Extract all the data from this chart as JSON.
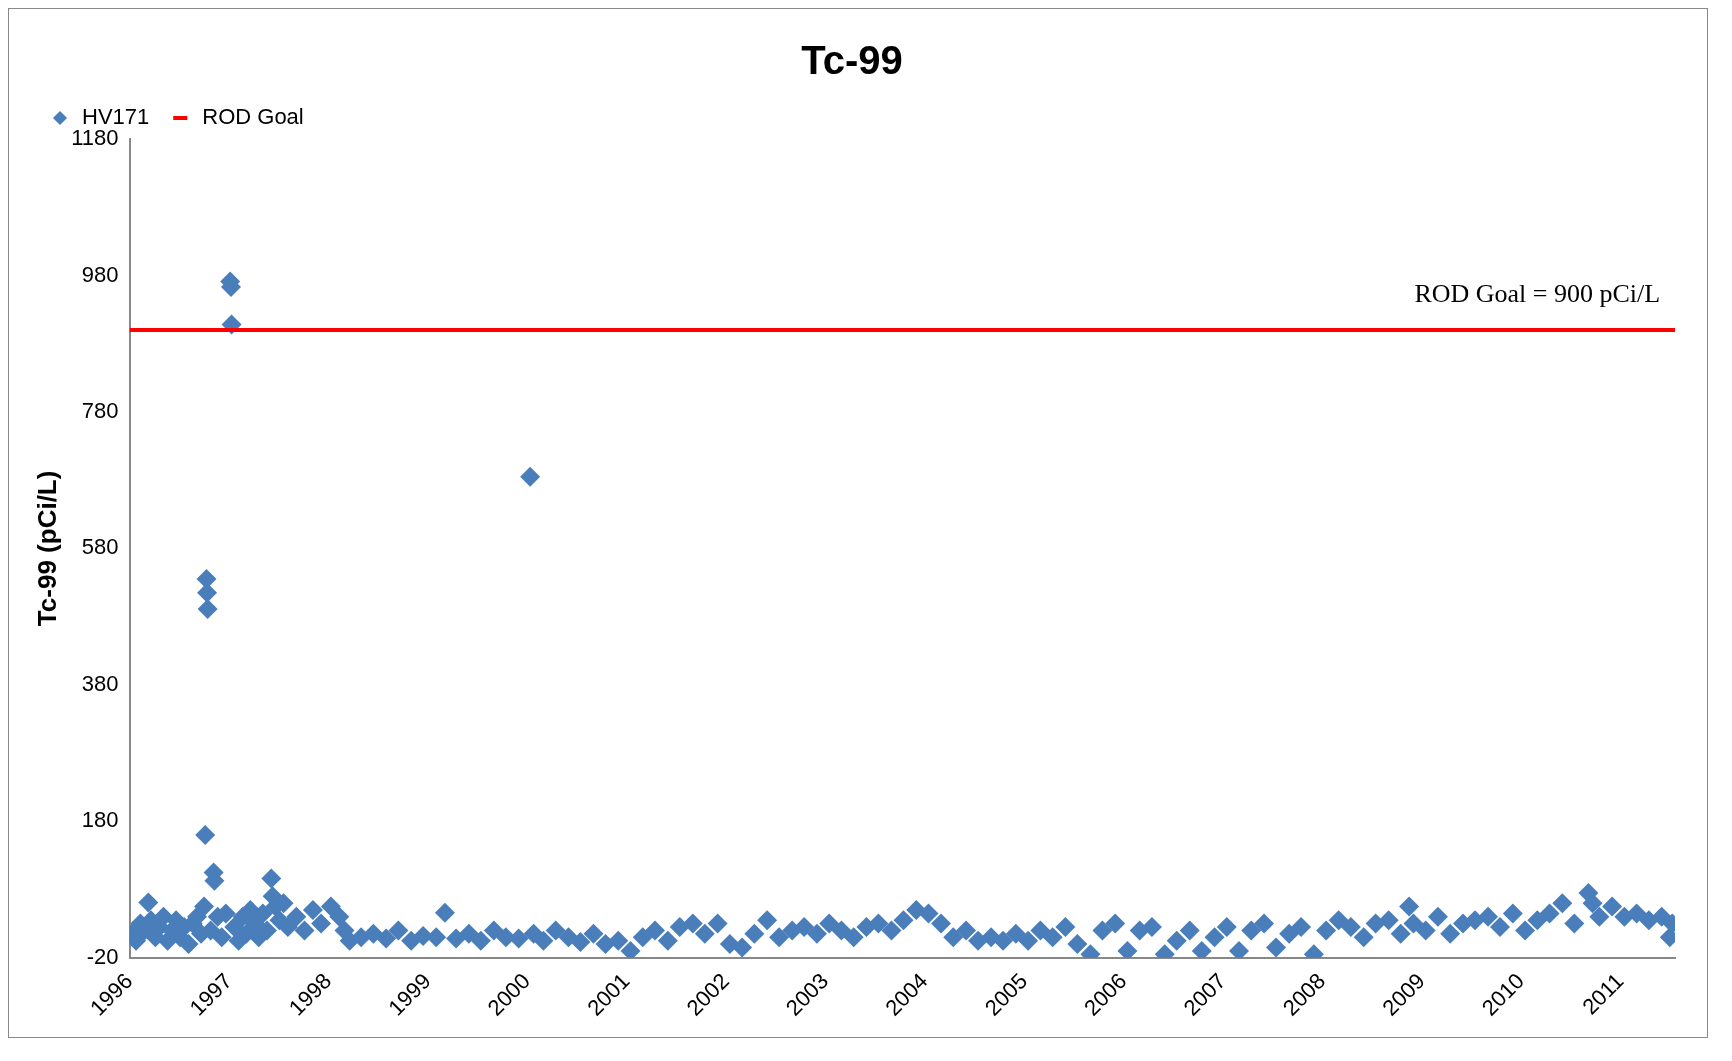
{
  "chart_data": {
    "type": "scatter",
    "title": "Tc-99",
    "ylabel": "Tc-99 (pCi/L)",
    "xlim": [
      "1996",
      "2011-07-20"
    ],
    "xticks": [
      "1996",
      "1997",
      "1998",
      "1999",
      "2000",
      "2001",
      "2002",
      "2003",
      "2004",
      "2005",
      "2006",
      "2007",
      "2008",
      "2009",
      "2010",
      "2011"
    ],
    "ylim": [
      -20,
      1180
    ],
    "yticks": [
      -20,
      180,
      380,
      580,
      780,
      980,
      1180
    ],
    "grid": false,
    "legend": "top left",
    "marker": "diamond",
    "annotations": [
      {
        "text": "ROD Goal = 900 pCi/L",
        "x": "2010-03",
        "y": 900
      }
    ],
    "series": [
      {
        "name": "HV171",
        "type": "scatter",
        "color": "#4a7ebb",
        "x": [
          "1996-01-10",
          "1996-01-25",
          "1996-02-10",
          "1996-02-25",
          "1996-03-10",
          "1996-03-20",
          "1996-04-05",
          "1996-04-20",
          "1996-05-05",
          "1996-05-20",
          "1996-06-05",
          "1996-06-20",
          "1996-07-05",
          "1996-07-20",
          "1996-08-05",
          "1996-08-20",
          "1996-09-05",
          "1996-09-20",
          "1996-10-01",
          "1996-10-05",
          "1996-10-10",
          "1996-10-12",
          "1996-10-14",
          "1996-10-25",
          "1996-11-05",
          "1996-11-08",
          "1996-11-20",
          "1996-12-05",
          "1996-12-20",
          "1997-01-05",
          "1997-01-08",
          "1997-01-10",
          "1997-01-20",
          "1997-02-05",
          "1997-02-20",
          "1997-03-05",
          "1997-03-20",
          "1997-04-05",
          "1997-04-20",
          "1997-05-05",
          "1997-05-20",
          "1997-06-05",
          "1997-06-10",
          "1997-06-20",
          "1997-07-05",
          "1997-07-20",
          "1997-08-05",
          "1997-09-05",
          "1997-10-05",
          "1997-11-05",
          "1997-12-05",
          "1998-01-10",
          "1998-02-10",
          "1998-03-01",
          "1998-03-20",
          "1998-05-01",
          "1998-06-15",
          "1998-08-01",
          "1998-09-15",
          "1998-11-01",
          "1998-12-15",
          "1999-02-01",
          "1999-03-05",
          "1999-04-15",
          "1999-06-01",
          "1999-07-15",
          "1999-09-01",
          "1999-10-15",
          "1999-12-01",
          "2000-01-12",
          "2000-01-25",
          "2000-03-01",
          "2000-04-15",
          "2000-06-01",
          "2000-07-15",
          "2000-09-01",
          "2000-10-15",
          "2000-12-01",
          "2001-01-15",
          "2001-03-01",
          "2001-04-15",
          "2001-06-01",
          "2001-07-15",
          "2001-09-01",
          "2001-10-15",
          "2001-12-01",
          "2002-01-15",
          "2002-03-01",
          "2002-04-15",
          "2002-06-01",
          "2002-07-15",
          "2002-09-01",
          "2002-10-15",
          "2002-12-01",
          "2003-01-15",
          "2003-03-01",
          "2003-04-15",
          "2003-06-01",
          "2003-07-15",
          "2003-09-01",
          "2003-10-15",
          "2003-12-01",
          "2004-01-15",
          "2004-03-01",
          "2004-04-15",
          "2004-06-01",
          "2004-07-15",
          "2004-09-01",
          "2004-10-15",
          "2004-12-01",
          "2005-01-15",
          "2005-03-01",
          "2005-04-15",
          "2005-06-01",
          "2005-07-15",
          "2005-09-01",
          "2005-10-15",
          "2005-12-01",
          "2006-01-15",
          "2006-03-01",
          "2006-04-15",
          "2006-06-01",
          "2006-07-15",
          "2006-09-01",
          "2006-10-15",
          "2006-12-01",
          "2007-01-15",
          "2007-03-01",
          "2007-04-15",
          "2007-06-01",
          "2007-07-15",
          "2007-09-01",
          "2007-10-15",
          "2007-12-01",
          "2008-01-15",
          "2008-03-01",
          "2008-04-15",
          "2008-06-01",
          "2008-07-15",
          "2008-09-01",
          "2008-10-15",
          "2008-11-15",
          "2008-12-01",
          "2009-01-15",
          "2009-03-01",
          "2009-04-15",
          "2009-06-01",
          "2009-07-15",
          "2009-09-01",
          "2009-10-15",
          "2009-12-01",
          "2010-01-15",
          "2010-03-01",
          "2010-04-15",
          "2010-06-01",
          "2010-07-15",
          "2010-09-05",
          "2010-09-20",
          "2010-10-15",
          "2010-12-01",
          "2011-01-15",
          "2011-03-01",
          "2011-04-15",
          "2011-06-01",
          "2011-07-01",
          "2011-07-10"
        ],
        "values": [
          15,
          5,
          30,
          20,
          61,
          35,
          10,
          25,
          40,
          5,
          20,
          35,
          10,
          25,
          0,
          30,
          40,
          15,
          55,
          160,
          535,
          515,
          491,
          20,
          105,
          93,
          40,
          10,
          45,
          971,
          963,
          908,
          25,
          5,
          40,
          15,
          50,
          30,
          10,
          45,
          20,
          96,
          70,
          55,
          35,
          60,
          25,
          40,
          20,
          50,
          30,
          55,
          40,
          20,
          5,
          10,
          15,
          8,
          20,
          5,
          12,
          10,
          46,
          8,
          15,
          5,
          20,
          10,
          8,
          685,
          15,
          5,
          20,
          10,
          3,
          15,
          0,
          5,
          -10,
          10,
          20,
          5,
          25,
          30,
          15,
          30,
          0,
          -5,
          15,
          35,
          10,
          20,
          25,
          15,
          30,
          20,
          10,
          25,
          30,
          20,
          35,
          50,
          45,
          30,
          10,
          20,
          5,
          10,
          5,
          15,
          5,
          20,
          10,
          25,
          0,
          -15,
          20,
          30,
          -10,
          20,
          25,
          -15,
          5,
          20,
          -10,
          10,
          25,
          -10,
          20,
          30,
          -5,
          15,
          25,
          -15,
          20,
          35,
          25,
          10,
          30,
          35,
          15,
          55,
          30,
          20,
          40,
          15,
          30,
          35,
          40,
          25,
          45,
          20,
          35,
          45,
          60,
          30,
          75,
          60,
          40,
          55,
          40,
          45,
          35,
          40,
          10,
          30
        ]
      },
      {
        "name": "ROD Goal",
        "type": "line",
        "color": "#ff0000",
        "marker": "none",
        "x": [
          "1996",
          "2011-07-20"
        ],
        "values": [
          900,
          900
        ]
      }
    ]
  }
}
